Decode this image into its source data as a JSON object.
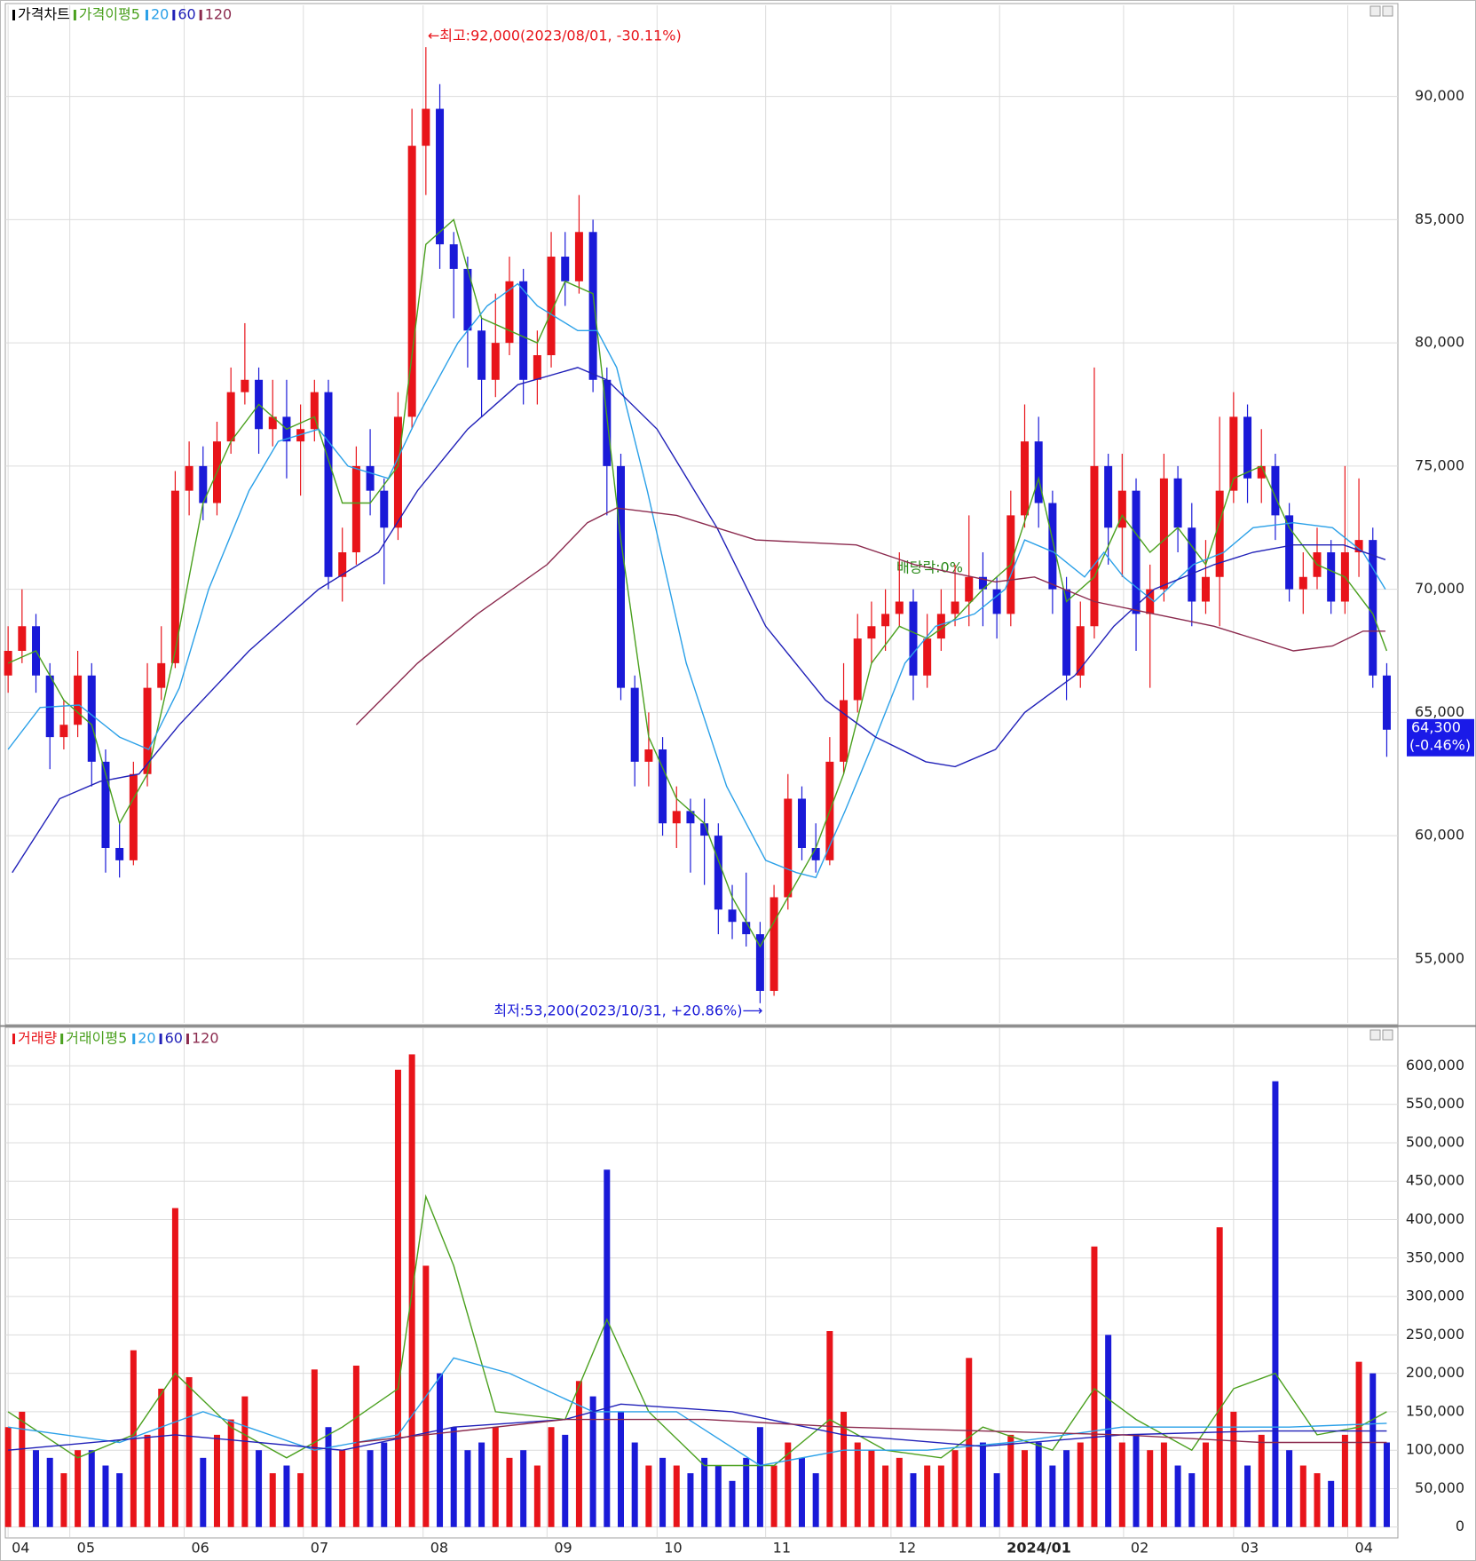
{
  "chart_data": [
    {
      "type": "candlestick",
      "title": "가격차트",
      "ma_title": "가격이평",
      "up_color": "#e8141a",
      "down_color": "#1a1ad8",
      "open": [
        66500,
        67500,
        68500,
        66500,
        64000,
        64500,
        66500,
        63000,
        59500,
        59000,
        62500,
        66000,
        67000,
        74000,
        75000,
        73500,
        76000,
        78000,
        78500,
        76500,
        77000,
        76000,
        76500,
        78000,
        70500,
        71500,
        75000,
        74000,
        72500,
        77000,
        88000,
        89500,
        84000,
        83000,
        80500,
        78500,
        80000,
        82500,
        78500,
        79500,
        83500,
        82500,
        84500,
        78500,
        75000,
        66000,
        63000,
        63500,
        60500,
        61000,
        60500,
        60000,
        57000,
        56500,
        56000,
        53700,
        57500,
        61500,
        59500,
        59000,
        63000,
        65500,
        68000,
        68500,
        69000,
        69500,
        66500,
        68000,
        69000,
        69500,
        70500,
        70000,
        69000,
        73000,
        76000,
        73500,
        70000,
        66500,
        68500,
        75000,
        72500,
        74000,
        69000,
        70000,
        74500,
        72500,
        69500,
        70500,
        74000,
        77000,
        74500,
        75000,
        73000,
        70000,
        70500,
        71500,
        69500,
        71500,
        72000,
        66500
      ],
      "high": [
        68500,
        70000,
        69000,
        67000,
        65500,
        67500,
        67000,
        63500,
        60500,
        63000,
        67000,
        68500,
        74800,
        76000,
        75800,
        76800,
        79000,
        80800,
        79000,
        78500,
        78500,
        77500,
        78500,
        78500,
        72500,
        75800,
        76500,
        74500,
        78000,
        89500,
        92000,
        90500,
        84500,
        83500,
        81000,
        82000,
        83500,
        83000,
        80500,
        84500,
        84500,
        86000,
        85000,
        79000,
        75500,
        66500,
        65000,
        64000,
        62000,
        61500,
        61500,
        60500,
        58000,
        58500,
        56500,
        58000,
        62500,
        62000,
        60500,
        64000,
        67000,
        69000,
        69500,
        70000,
        71500,
        70000,
        69000,
        70000,
        71000,
        73000,
        71500,
        70500,
        74000,
        77500,
        77000,
        74000,
        70500,
        69500,
        79000,
        75500,
        75500,
        74500,
        71000,
        75500,
        75000,
        73500,
        72000,
        77000,
        78000,
        77500,
        76500,
        75500,
        73500,
        71500,
        72500,
        72000,
        75000,
        74500,
        72500,
        67000
      ],
      "low": [
        65800,
        67000,
        65800,
        62700,
        63500,
        64000,
        62000,
        58500,
        58300,
        58800,
        62000,
        65500,
        66800,
        73000,
        72800,
        73000,
        75500,
        77500,
        75500,
        75800,
        74500,
        73800,
        76000,
        70000,
        69500,
        71000,
        73000,
        70200,
        72000,
        76500,
        86000,
        83000,
        81000,
        79000,
        77000,
        77800,
        79500,
        77500,
        77500,
        79000,
        81500,
        82000,
        78000,
        73000,
        65500,
        62000,
        62000,
        60000,
        59500,
        58500,
        58000,
        56000,
        55800,
        55500,
        53200,
        53500,
        57000,
        59000,
        58500,
        58800,
        62500,
        65000,
        67000,
        67500,
        68500,
        65500,
        66000,
        67500,
        68500,
        68500,
        68500,
        68000,
        68500,
        72500,
        72500,
        69000,
        65500,
        66000,
        68000,
        71000,
        70500,
        67500,
        66000,
        69500,
        71500,
        68500,
        69000,
        68500,
        73500,
        73500,
        73500,
        72000,
        69500,
        69000,
        70000,
        69000,
        69000,
        70500,
        66000,
        63200
      ],
      "close": [
        67500,
        68500,
        66500,
        64000,
        64500,
        66500,
        63000,
        59500,
        59000,
        62500,
        66000,
        67000,
        74000,
        75000,
        73500,
        76000,
        78000,
        78500,
        76500,
        77000,
        76000,
        76500,
        78000,
        70500,
        71500,
        75000,
        74000,
        72500,
        77000,
        88000,
        89500,
        84000,
        83000,
        80500,
        78500,
        80000,
        82500,
        78500,
        79500,
        83500,
        82500,
        84500,
        78500,
        75000,
        66000,
        63000,
        63500,
        60500,
        61000,
        60500,
        60000,
        57000,
        56500,
        56000,
        53700,
        57500,
        61500,
        59500,
        59000,
        63000,
        65500,
        68000,
        68500,
        69000,
        69500,
        66500,
        68000,
        69000,
        69500,
        70500,
        70000,
        69000,
        73000,
        76000,
        73500,
        70000,
        66500,
        68500,
        75000,
        72500,
        74000,
        69000,
        70000,
        74500,
        72500,
        69500,
        70500,
        74000,
        77000,
        74500,
        75000,
        73000,
        70000,
        70500,
        71500,
        69500,
        71500,
        72000,
        66500,
        64300
      ],
      "series": [
        {
          "name": "5",
          "color": "#4aa01e",
          "x": [
            0,
            2,
            4,
            6,
            8,
            10,
            12,
            14,
            16,
            18,
            20,
            22,
            24,
            26,
            28,
            30,
            32,
            34,
            36,
            38,
            40,
            42,
            44,
            46,
            48,
            50,
            52,
            54,
            56,
            58,
            60,
            62,
            64,
            66,
            68,
            70,
            72,
            74,
            76,
            78,
            80,
            82,
            84,
            86,
            88,
            90,
            92,
            94,
            96,
            98,
            99
          ],
          "values": [
            67000,
            67500,
            65500,
            64500,
            60500,
            62500,
            67500,
            73500,
            76000,
            77500,
            76500,
            77000,
            73500,
            73500,
            75000,
            84000,
            85000,
            81000,
            80500,
            80000,
            82500,
            82000,
            72000,
            64000,
            61500,
            60500,
            57500,
            55500,
            57500,
            59500,
            62500,
            67000,
            68500,
            68000,
            68800,
            70000,
            71000,
            74500,
            69500,
            70500,
            73000,
            71500,
            72500,
            71000,
            74500,
            75000,
            72500,
            71000,
            70500,
            69000,
            67500
          ]
        },
        {
          "name": "20",
          "color": "#2aa0e8",
          "x": [
            0,
            2.3,
            5.1,
            8,
            10.1,
            12.3,
            14.4,
            17.3,
            19.4,
            22.3,
            24.4,
            27.3,
            29.4,
            32.3,
            34.4,
            36.6,
            38,
            40.9,
            42.3,
            43.7,
            45.9,
            48.7,
            51.6,
            54.4,
            56.6,
            58,
            60.1,
            62.3,
            64.4,
            66.6,
            69.4,
            71.6,
            73,
            75.1,
            77.3,
            78.7,
            80.1,
            82.3,
            85.1,
            87.3,
            89.4,
            92.3,
            95.1,
            97.3,
            98.9
          ],
          "values": [
            63500,
            65200,
            65300,
            64000,
            63500,
            66000,
            70000,
            74000,
            76000,
            76500,
            75000,
            74500,
            77000,
            80000,
            81500,
            82400,
            81500,
            80500,
            80500,
            79000,
            74000,
            67000,
            62000,
            59000,
            58500,
            58300,
            61000,
            64000,
            67000,
            68500,
            69000,
            70000,
            72000,
            71500,
            70500,
            71500,
            70500,
            69500,
            71000,
            71500,
            72500,
            72700,
            72500,
            71500,
            70000
          ]
        },
        {
          "name": "60",
          "color": "#2020b8",
          "x": [
            0.3,
            3.7,
            6.6,
            9.4,
            12.3,
            17.3,
            22.3,
            26.6,
            29.4,
            33,
            36.6,
            40.9,
            43,
            46.6,
            50.9,
            54.4,
            58.7,
            62.3,
            65.9,
            68,
            70.9,
            73,
            76.6,
            79.4,
            82.3,
            86.6,
            89.4,
            92.3,
            95.9,
            98.9
          ],
          "values": [
            58500,
            61500,
            62200,
            62500,
            64500,
            67500,
            70000,
            71500,
            74000,
            76500,
            78300,
            79000,
            78500,
            76500,
            72500,
            68500,
            65500,
            64000,
            63000,
            62800,
            63500,
            65000,
            66500,
            68500,
            70000,
            71000,
            71500,
            71800,
            71800,
            71200
          ]
        },
        {
          "name": "120",
          "color": "#8b2a4e",
          "x": [
            25,
            29.4,
            33.7,
            38.7,
            41.6,
            43.7,
            48,
            53.7,
            60.9,
            65.1,
            70.9,
            73.7,
            78,
            82.3,
            86.6,
            92.3,
            95.1,
            97.3,
            98.9
          ],
          "values": [
            64500,
            67000,
            69000,
            71000,
            72700,
            73300,
            73000,
            72000,
            71800,
            71000,
            70300,
            70500,
            69500,
            69000,
            68500,
            67500,
            67700,
            68300,
            68300
          ]
        }
      ],
      "xlim": [
        -0.2,
        99.8
      ],
      "xticks": [
        {
          "value": 0,
          "label": "04"
        },
        {
          "value": 4.43,
          "label": "05"
        },
        {
          "value": 12.64,
          "label": "06"
        },
        {
          "value": 21.2,
          "label": "07"
        },
        {
          "value": 29.8,
          "label": "08"
        },
        {
          "value": 38.7,
          "label": "09"
        },
        {
          "value": 46.6,
          "label": "10"
        },
        {
          "value": 54.4,
          "label": "11"
        },
        {
          "value": 63.4,
          "label": "12"
        },
        {
          "value": 71.2,
          "label": "2024/01"
        },
        {
          "value": 80.1,
          "label": "02"
        },
        {
          "value": 88,
          "label": "03"
        },
        {
          "value": 96.2,
          "label": "04"
        }
      ],
      "ylim": [
        52400,
        93700
      ],
      "yticks": [
        {
          "value": 55000,
          "label": "55,000"
        },
        {
          "value": 60000,
          "label": "60,000"
        },
        {
          "value": 65000,
          "label": "65,000"
        },
        {
          "value": 70000,
          "label": "70,000"
        },
        {
          "value": 75000,
          "label": "75,000"
        },
        {
          "value": 80000,
          "label": "80,000"
        },
        {
          "value": 85000,
          "label": "85,000"
        },
        {
          "value": 90000,
          "label": "90,000"
        }
      ],
      "grid": true,
      "high_annotation": "←최고:92,000(2023/08/01,  -30.11%)",
      "low_annotation": "최저:53,200(2023/10/31,  +20.86%)⟶",
      "dividend_annotation": "배당락:0%",
      "last_price_label": "64,300",
      "last_change_label": "(-0.46%)"
    },
    {
      "type": "bar",
      "title": "거래량",
      "ma_title": "거래이평",
      "values": [
        130000,
        150000,
        100000,
        90000,
        70000,
        100000,
        100000,
        80000,
        70000,
        230000,
        120000,
        180000,
        415000,
        195000,
        90000,
        120000,
        140000,
        170000,
        100000,
        70000,
        80000,
        70000,
        205000,
        130000,
        100000,
        210000,
        100000,
        110000,
        595000,
        615000,
        340000,
        200000,
        130000,
        100000,
        110000,
        130000,
        90000,
        100000,
        80000,
        130000,
        120000,
        190000,
        170000,
        465000,
        150000,
        110000,
        80000,
        90000,
        80000,
        70000,
        90000,
        80000,
        60000,
        90000,
        130000,
        80000,
        110000,
        90000,
        70000,
        255000,
        150000,
        110000,
        100000,
        80000,
        90000,
        70000,
        80000,
        80000,
        100000,
        220000,
        110000,
        70000,
        120000,
        100000,
        110000,
        80000,
        100000,
        110000,
        365000,
        250000,
        110000,
        120000,
        100000,
        110000,
        80000,
        70000,
        110000,
        390000,
        150000,
        80000,
        120000,
        580000,
        100000,
        80000,
        70000,
        60000,
        120000,
        215000,
        200000,
        110000
      ],
      "series": [
        {
          "name": "5",
          "color": "#4aa01e",
          "x": [
            0,
            5,
            9,
            12,
            16,
            20,
            24,
            28,
            30,
            32,
            35,
            40,
            43,
            46,
            50,
            55,
            59,
            63,
            67,
            70,
            75,
            78,
            81,
            85,
            88,
            91,
            94,
            97,
            99
          ],
          "values": [
            150000,
            90000,
            120000,
            200000,
            130000,
            90000,
            130000,
            180000,
            430000,
            340000,
            150000,
            140000,
            270000,
            150000,
            80000,
            80000,
            140000,
            100000,
            90000,
            130000,
            100000,
            180000,
            140000,
            100000,
            180000,
            200000,
            120000,
            130000,
            150000
          ]
        },
        {
          "name": "20",
          "color": "#2aa0e8",
          "x": [
            0,
            8,
            14,
            22,
            28,
            32,
            36,
            42,
            48,
            54,
            60,
            66,
            72,
            80,
            86,
            92,
            99
          ],
          "values": [
            130000,
            110000,
            150000,
            100000,
            120000,
            220000,
            200000,
            150000,
            150000,
            80000,
            100000,
            100000,
            110000,
            130000,
            130000,
            130000,
            135000
          ]
        },
        {
          "name": "60",
          "color": "#2020b8",
          "x": [
            0,
            12,
            24,
            32,
            40,
            44,
            52,
            60,
            70,
            80,
            90,
            99
          ],
          "values": [
            100000,
            120000,
            100000,
            130000,
            140000,
            160000,
            150000,
            120000,
            105000,
            120000,
            125000,
            125000
          ]
        },
        {
          "name": "120",
          "color": "#8b2a4e",
          "x": [
            25,
            40,
            50,
            60,
            70,
            80,
            90,
            99
          ],
          "values": [
            110000,
            140000,
            140000,
            130000,
            125000,
            120000,
            110000,
            110000
          ]
        }
      ],
      "ylim": [
        -13000,
        649000
      ],
      "yticks": [
        0,
        {
          "value": 50000,
          "label": "50,000"
        },
        {
          "value": 100000,
          "label": "100,000"
        },
        {
          "value": 150000,
          "label": "150,000"
        },
        {
          "value": 200000,
          "label": "200,000"
        },
        {
          "value": 250000,
          "label": "250,000"
        },
        {
          "value": 300000,
          "label": "300,000"
        },
        {
          "value": 350000,
          "label": "350,000"
        },
        {
          "value": 400000,
          "label": "400,000"
        },
        {
          "value": 450000,
          "label": "450,000"
        },
        {
          "value": 500000,
          "label": "500,000"
        },
        {
          "value": 550000,
          "label": "550,000"
        },
        {
          "value": 600000,
          "label": "600,000"
        }
      ],
      "grid": true
    }
  ]
}
